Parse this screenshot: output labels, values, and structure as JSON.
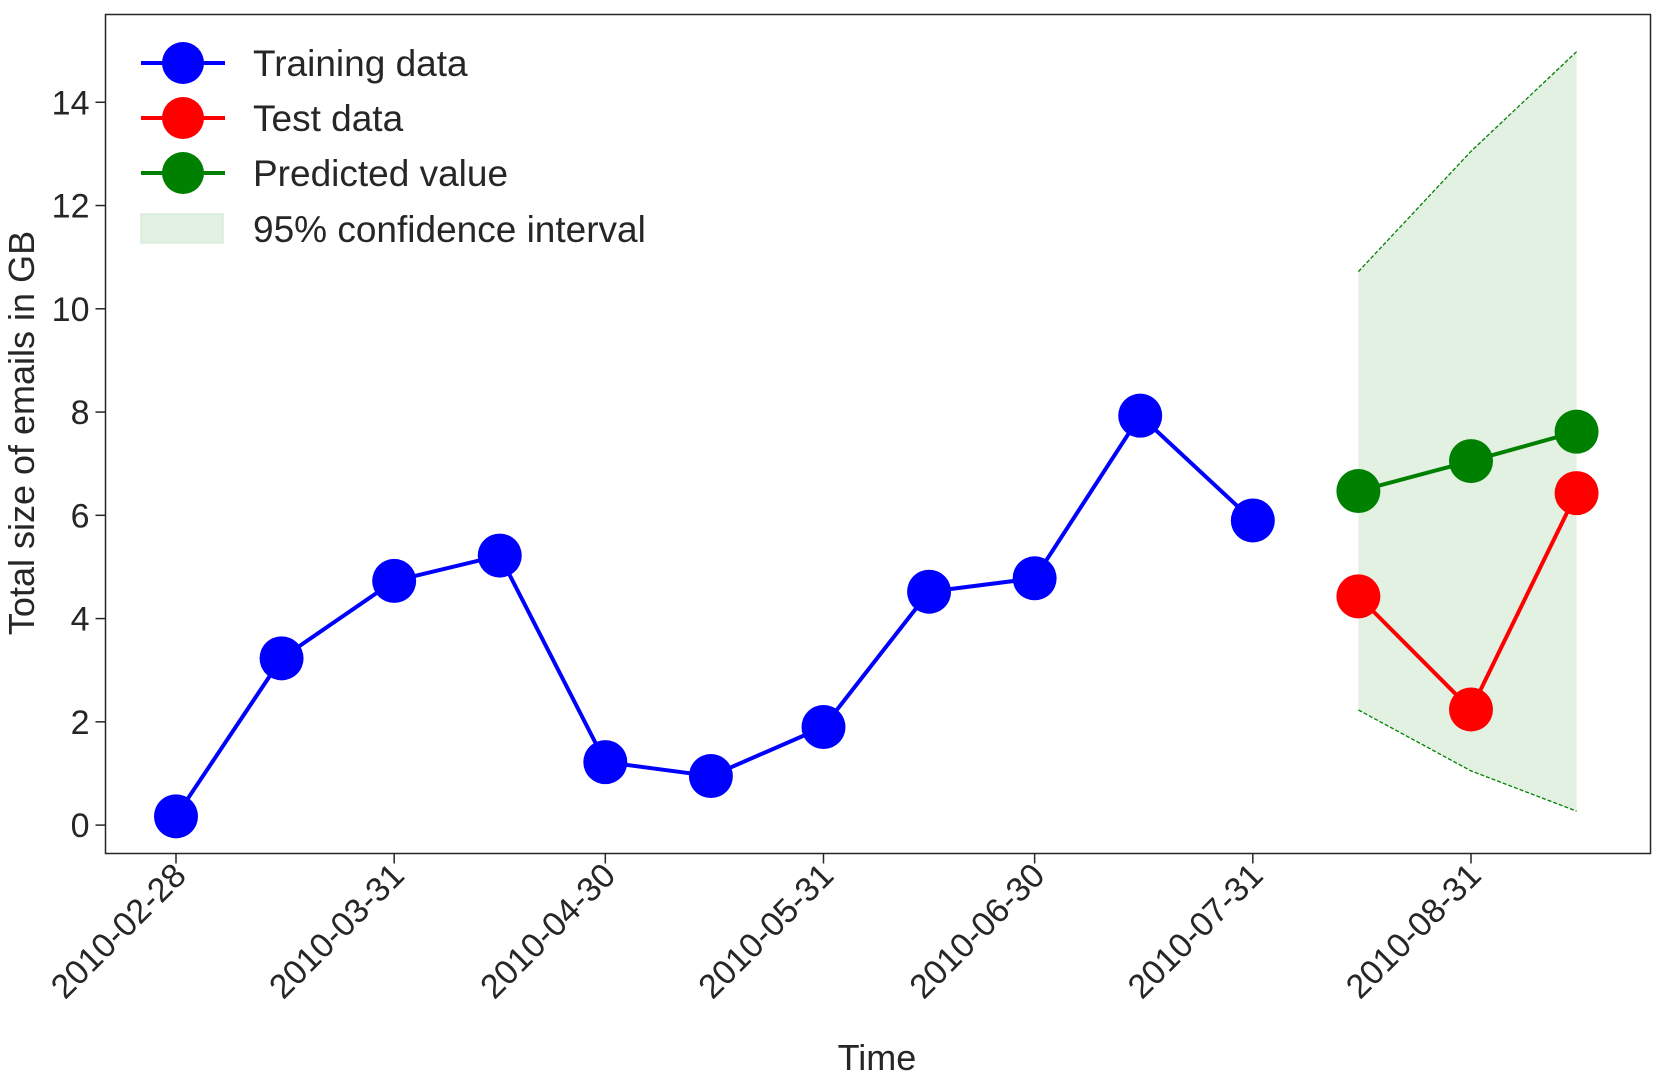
{
  "chart_data": {
    "type": "line",
    "xlabel": "Time",
    "ylabel": "Total size of emails in GB",
    "x_tick_labels": [
      "2010-02-28",
      "2010-03-31",
      "2010-04-30",
      "2010-05-31",
      "2010-06-30",
      "2010-07-31",
      "2010-08-31"
    ],
    "y_tick_labels": [
      "0",
      "2",
      "4",
      "6",
      "8",
      "10",
      "12",
      "14"
    ],
    "ylim": [
      -0.55,
      15.7
    ],
    "grid": false,
    "legend_position": "top-left",
    "series": [
      {
        "name": "Training data",
        "color": "#0000ff",
        "x": [
          "2010-02-28",
          "2010-03-15",
          "2010-03-31",
          "2010-04-15",
          "2010-04-30",
          "2010-05-15",
          "2010-05-31",
          "2010-06-15",
          "2010-06-30",
          "2010-07-15",
          "2010-07-31"
        ],
        "values": [
          0.17,
          3.23,
          4.73,
          5.22,
          1.22,
          0.95,
          1.9,
          4.52,
          4.78,
          7.93,
          5.9
        ]
      },
      {
        "name": "Test data",
        "color": "#ff0000",
        "x": [
          "2010-08-15",
          "2010-08-31",
          "2010-09-15"
        ],
        "values": [
          4.43,
          2.24,
          6.43
        ]
      },
      {
        "name": "Predicted value",
        "color": "#008000",
        "x": [
          "2010-08-15",
          "2010-08-31",
          "2010-09-15"
        ],
        "values": [
          6.47,
          7.05,
          7.62
        ]
      }
    ],
    "confidence_interval": {
      "name": "95% confidence interval",
      "color": "#e3f1e3",
      "x": [
        "2010-08-15",
        "2010-08-31",
        "2010-09-15"
      ],
      "lower": [
        2.23,
        1.05,
        0.27
      ],
      "upper": [
        10.72,
        13.05,
        14.98
      ]
    }
  }
}
